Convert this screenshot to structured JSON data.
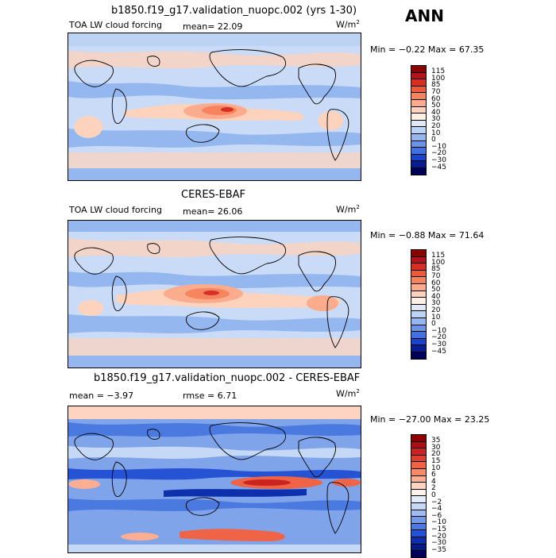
{
  "season": "ANN",
  "panels": [
    {
      "id": "model",
      "title": "b1850.f19_g17.validation_nuopc.002 (yrs 1-30)",
      "variable": "TOA LW cloud forcing",
      "stat_left": "mean=  22.09",
      "stat_right": "",
      "units_base": "W/m",
      "units_exp": "2",
      "minmax": "Min = −0.22 Max =  67.35",
      "levels": [
        "115",
        "100",
        "85",
        "70",
        "60",
        "50",
        "40",
        "30",
        "20",
        "10",
        "0",
        "−10",
        "−20",
        "−30",
        "−45"
      ],
      "colors": [
        "#8c0000",
        "#b3131a",
        "#d62f26",
        "#ec5a3d",
        "#f6845f",
        "#fbac8d",
        "#fdd3bd",
        "#fff0e3",
        "#dfe9f8",
        "#bcd3f3",
        "#95b7ef",
        "#6b94e6",
        "#4272e0",
        "#1a44c9",
        "#081c94",
        "#000057"
      ]
    },
    {
      "id": "obs",
      "title": "CERES-EBAF",
      "variable": "TOA LW cloud forcing",
      "stat_left": "mean=  26.06",
      "stat_right": "",
      "units_base": "W/m",
      "units_exp": "2",
      "minmax": "Min = −0.88 Max =  71.64",
      "levels": [
        "115",
        "100",
        "85",
        "70",
        "60",
        "50",
        "40",
        "30",
        "20",
        "10",
        "0",
        "−10",
        "−20",
        "−30",
        "−45"
      ],
      "colors": [
        "#8c0000",
        "#b3131a",
        "#d62f26",
        "#ec5a3d",
        "#f6845f",
        "#fbac8d",
        "#fdd3bd",
        "#fff0e3",
        "#dfe9f8",
        "#bcd3f3",
        "#95b7ef",
        "#6b94e6",
        "#4272e0",
        "#1a44c9",
        "#081c94",
        "#000057"
      ]
    },
    {
      "id": "diff",
      "title": "b1850.f19_g17.validation_nuopc.002 - CERES-EBAF",
      "variable": "",
      "stat_left": "mean =  −3.97",
      "stat_right": "rmse =   6.71",
      "units_base": "W/m",
      "units_exp": "2",
      "minmax": "Min = −27.00 Max =  23.25",
      "levels": [
        "35",
        "30",
        "20",
        "15",
        "10",
        "6",
        "4",
        "2",
        "0",
        "−2",
        "−4",
        "−6",
        "−10",
        "−15",
        "−20",
        "−30",
        "−35"
      ],
      "colors": [
        "#8c0000",
        "#ab0f12",
        "#c9241f",
        "#e0412f",
        "#ef6446",
        "#f88a68",
        "#fcae92",
        "#fdd4c1",
        "#fff2e8",
        "#e3ecfa",
        "#c5d8f5",
        "#9dbdf0",
        "#7499e8",
        "#4a79e0",
        "#2653d4",
        "#0e2fae",
        "#061a86",
        "#00005a"
      ]
    }
  ],
  "map_colors": {
    "base_model": "#c9dbf6",
    "base_obs": "#c9dbf6",
    "base_diff": "#7fa4ea"
  }
}
